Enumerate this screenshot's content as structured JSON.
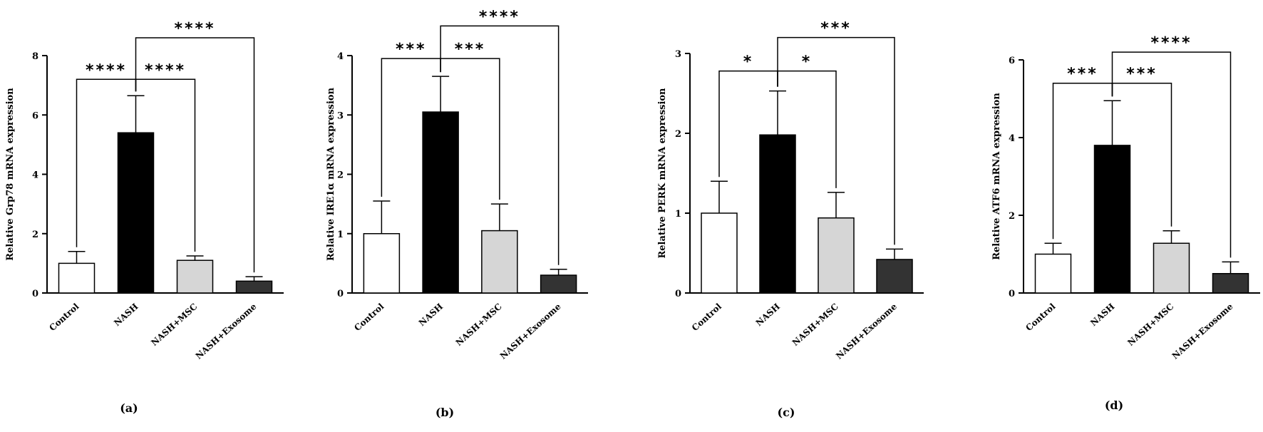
{
  "chart_data": [
    {
      "type": "bar",
      "panel_label": "(a)",
      "ylabel": "Relative Grp78 mRNA expression",
      "categories": [
        "Control",
        "NASH",
        "NASH+MSC",
        "NASH+Exosome"
      ],
      "values": [
        1.0,
        5.4,
        1.1,
        0.4
      ],
      "errors": [
        0.4,
        1.25,
        0.15,
        0.15
      ],
      "ylim": [
        0,
        8
      ],
      "yticks": [
        0,
        2,
        4,
        6,
        8
      ],
      "significance": [
        {
          "from": 0,
          "to": 1,
          "label": "****",
          "level": 7.2
        },
        {
          "from": 1,
          "to": 2,
          "label": "****",
          "level": 7.2
        },
        {
          "from": 1,
          "to": 3,
          "label": "****",
          "level": 8.6
        }
      ]
    },
    {
      "type": "bar",
      "panel_label": "(b)",
      "ylabel": "Relative IRE1α mRNA expression",
      "categories": [
        "Control",
        "NASH",
        "NASH+MSC",
        "NASH+Exosome"
      ],
      "values": [
        1.0,
        3.05,
        1.05,
        0.3
      ],
      "errors": [
        0.55,
        0.6,
        0.45,
        0.1
      ],
      "ylim": [
        0,
        4
      ],
      "yticks": [
        0,
        1,
        2,
        3,
        4
      ],
      "significance": [
        {
          "from": 0,
          "to": 1,
          "label": "***",
          "level": 3.95
        },
        {
          "from": 1,
          "to": 2,
          "label": "***",
          "level": 3.95
        },
        {
          "from": 1,
          "to": 3,
          "label": "****",
          "level": 4.5
        }
      ]
    },
    {
      "type": "bar",
      "panel_label": "(c)",
      "ylabel": "Relative PERK mRNA expression",
      "categories": [
        "Control",
        "NASH",
        "NASH+MSC",
        "NASH+Exosome"
      ],
      "values": [
        1.0,
        1.98,
        0.94,
        0.42
      ],
      "errors": [
        0.4,
        0.55,
        0.32,
        0.13
      ],
      "ylim": [
        0,
        3
      ],
      "yticks": [
        0,
        1,
        2,
        3
      ],
      "significance": [
        {
          "from": 0,
          "to": 1,
          "label": "*",
          "level": 2.78
        },
        {
          "from": 1,
          "to": 2,
          "label": "*",
          "level": 2.78
        },
        {
          "from": 1,
          "to": 3,
          "label": "***",
          "level": 3.2
        }
      ]
    },
    {
      "type": "bar",
      "panel_label": "(d)",
      "ylabel": "Relative ATF6 mRNA expression",
      "categories": [
        "Control",
        "NASH",
        "NASH+MSC",
        "NASH+Exosome"
      ],
      "values": [
        1.0,
        3.8,
        1.28,
        0.5
      ],
      "errors": [
        0.28,
        1.15,
        0.32,
        0.3
      ],
      "ylim": [
        0,
        6
      ],
      "yticks": [
        0,
        2,
        4,
        6
      ],
      "significance": [
        {
          "from": 0,
          "to": 1,
          "label": "***",
          "level": 5.4
        },
        {
          "from": 1,
          "to": 2,
          "label": "***",
          "level": 5.4
        },
        {
          "from": 1,
          "to": 3,
          "label": "****",
          "level": 6.2
        }
      ]
    }
  ],
  "colors": {
    "bar_fills": [
      "#ffffff",
      "#000000",
      "#d6d6d6",
      "#333333"
    ],
    "stroke": "#000000"
  }
}
